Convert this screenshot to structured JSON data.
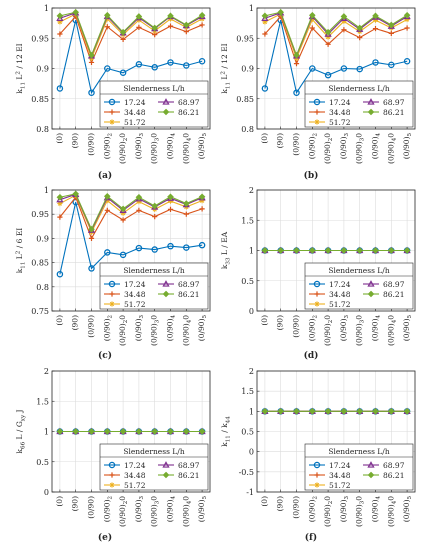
{
  "chart_data": [
    {
      "panel": "(a)",
      "type": "line",
      "ylabel": "k_11 L^2 / 12 EI",
      "ylim": [
        0.8,
        1.0
      ],
      "yticks": [
        "0.8",
        "0.85",
        "0.9",
        "0.95",
        "1"
      ],
      "categories": [
        "(0)",
        "(90)",
        "(0/90)",
        "(0/90)_2",
        "(0/90)_2 0",
        "(0/90)_3",
        "(0/90)_3 0",
        "(0/90)_4",
        "(0/90)_4 0",
        "(0/90)_5"
      ],
      "legend_title": "Slenderness L/h",
      "legend_position": "bottom-right",
      "grid": true,
      "series": [
        {
          "name": "17.24",
          "color": "#0072BD",
          "marker": "circle",
          "values": [
            0.867,
            0.98,
            0.86,
            0.9,
            0.893,
            0.907,
            0.902,
            0.91,
            0.905,
            0.912
          ]
        },
        {
          "name": "34.48",
          "color": "#D95319",
          "marker": "plus",
          "values": [
            0.957,
            0.986,
            0.91,
            0.969,
            0.948,
            0.968,
            0.956,
            0.97,
            0.961,
            0.972
          ]
        },
        {
          "name": "51.72",
          "color": "#EDB120",
          "marker": "star",
          "values": [
            0.977,
            0.99,
            0.917,
            0.982,
            0.956,
            0.98,
            0.962,
            0.982,
            0.968,
            0.982
          ]
        },
        {
          "name": "68.97",
          "color": "#7E2F8E",
          "marker": "triangle",
          "values": [
            0.983,
            0.992,
            0.921,
            0.986,
            0.959,
            0.984,
            0.966,
            0.986,
            0.971,
            0.986
          ]
        },
        {
          "name": "86.21",
          "color": "#77AC30",
          "marker": "diamond",
          "values": [
            0.987,
            0.993,
            0.922,
            0.988,
            0.96,
            0.986,
            0.967,
            0.987,
            0.972,
            0.988
          ]
        }
      ]
    },
    {
      "panel": "(b)",
      "type": "line",
      "ylabel": "k_11 L^2 / 12 EI",
      "ylim": [
        0.8,
        1.0
      ],
      "yticks": [
        "0.8",
        "0.85",
        "0.9",
        "0.95",
        "1"
      ],
      "categories": [
        "(0)",
        "(90)",
        "(0/90)",
        "(0/90)_2",
        "(0/90)_2 0",
        "(0/90)_3",
        "(0/90)_3 0",
        "(0/90)_4",
        "(0/90)_4 0",
        "(0/90)_5"
      ],
      "legend_title": "Slenderness L/h",
      "legend_position": "bottom-right",
      "grid": true,
      "series": [
        {
          "name": "17.24",
          "color": "#0072BD",
          "marker": "circle",
          "values": [
            0.867,
            0.98,
            0.86,
            0.9,
            0.889,
            0.9,
            0.899,
            0.91,
            0.906,
            0.912
          ]
        },
        {
          "name": "34.48",
          "color": "#D95319",
          "marker": "plus",
          "values": [
            0.957,
            0.986,
            0.908,
            0.967,
            0.94,
            0.964,
            0.951,
            0.966,
            0.958,
            0.967
          ]
        },
        {
          "name": "51.72",
          "color": "#EDB120",
          "marker": "star",
          "values": [
            0.977,
            0.99,
            0.917,
            0.981,
            0.952,
            0.978,
            0.961,
            0.98,
            0.967,
            0.981
          ]
        },
        {
          "name": "68.97",
          "color": "#7E2F8E",
          "marker": "triangle",
          "values": [
            0.983,
            0.992,
            0.921,
            0.986,
            0.957,
            0.983,
            0.965,
            0.985,
            0.97,
            0.986
          ]
        },
        {
          "name": "86.21",
          "color": "#77AC30",
          "marker": "diamond",
          "values": [
            0.987,
            0.993,
            0.922,
            0.988,
            0.96,
            0.986,
            0.967,
            0.987,
            0.972,
            0.988
          ]
        }
      ]
    },
    {
      "panel": "(c)",
      "type": "line",
      "ylabel": "k_11 L^2 / 6 EI",
      "ylim": [
        0.75,
        1.0
      ],
      "yticks": [
        "0.75",
        "0.8",
        "0.85",
        "0.9",
        "0.95",
        "1"
      ],
      "categories": [
        "(0)",
        "(90)",
        "(0/90)",
        "(0/90)_2",
        "(0/90)_2 0",
        "(0/90)_3",
        "(0/90)_3 0",
        "(0/90)_4",
        "(0/90)_4 0",
        "(0/90)_5"
      ],
      "legend_title": "Slenderness L/h",
      "legend_position": "bottom-right",
      "grid": true,
      "series": [
        {
          "name": "17.24",
          "color": "#0072BD",
          "marker": "circle",
          "values": [
            0.826,
            0.975,
            0.838,
            0.871,
            0.866,
            0.88,
            0.877,
            0.884,
            0.881,
            0.886
          ]
        },
        {
          "name": "34.48",
          "color": "#D95319",
          "marker": "plus",
          "values": [
            0.944,
            0.985,
            0.9,
            0.958,
            0.938,
            0.958,
            0.945,
            0.96,
            0.95,
            0.961
          ]
        },
        {
          "name": "51.72",
          "color": "#EDB120",
          "marker": "star",
          "values": [
            0.972,
            0.989,
            0.913,
            0.978,
            0.952,
            0.976,
            0.96,
            0.977,
            0.965,
            0.978
          ]
        },
        {
          "name": "68.97",
          "color": "#7E2F8E",
          "marker": "triangle",
          "values": [
            0.98,
            0.991,
            0.917,
            0.984,
            0.958,
            0.982,
            0.965,
            0.983,
            0.97,
            0.984
          ]
        },
        {
          "name": "86.21",
          "color": "#77AC30",
          "marker": "diamond",
          "values": [
            0.985,
            0.992,
            0.919,
            0.987,
            0.961,
            0.985,
            0.967,
            0.986,
            0.972,
            0.986
          ]
        }
      ]
    },
    {
      "panel": "(d)",
      "type": "line",
      "ylabel": "k_33 L / EA",
      "ylim": [
        0,
        2
      ],
      "yticks": [
        "0",
        "0.5",
        "1",
        "1.5",
        "2"
      ],
      "categories": [
        "(0)",
        "(90)",
        "(0/90)",
        "(0/90)_2",
        "(0/90)_2 0",
        "(0/90)_3",
        "(0/90)_3 0",
        "(0/90)_4",
        "(0/90)_4 0",
        "(0/90)_5"
      ],
      "legend_title": "Slenderness L/h",
      "legend_position": "bottom-right",
      "grid": true,
      "series": [
        {
          "name": "17.24",
          "color": "#0072BD",
          "marker": "circle",
          "values": [
            1,
            1,
            1,
            1,
            1,
            1,
            1,
            1,
            1,
            1
          ]
        },
        {
          "name": "34.48",
          "color": "#D95319",
          "marker": "plus",
          "values": [
            1,
            1,
            1,
            1,
            1,
            1,
            1,
            1,
            1,
            1
          ]
        },
        {
          "name": "51.72",
          "color": "#EDB120",
          "marker": "star",
          "values": [
            1,
            1,
            1,
            1,
            1,
            1,
            1,
            1,
            1,
            1
          ]
        },
        {
          "name": "68.97",
          "color": "#7E2F8E",
          "marker": "triangle",
          "values": [
            1,
            1,
            1,
            1,
            1,
            1,
            1,
            1,
            1,
            1
          ]
        },
        {
          "name": "86.21",
          "color": "#77AC30",
          "marker": "diamond",
          "values": [
            1,
            1,
            1,
            1,
            1,
            1,
            1,
            1,
            1,
            1
          ]
        }
      ]
    },
    {
      "panel": "(e)",
      "type": "line",
      "ylabel": "k_66 L / G_xy J",
      "ylim": [
        0,
        2
      ],
      "yticks": [
        "0",
        "0.5",
        "1",
        "1.5",
        "2"
      ],
      "categories": [
        "(0)",
        "(90)",
        "(0/90)",
        "(0/90)_2",
        "(0/90)_2 0",
        "(0/90)_3",
        "(0/90)_3 0",
        "(0/90)_4",
        "(0/90)_4 0",
        "(0/90)_5"
      ],
      "legend_title": "Slenderness L/h",
      "legend_position": "bottom-right",
      "grid": true,
      "series": [
        {
          "name": "17.24",
          "color": "#0072BD",
          "marker": "circle",
          "values": [
            1,
            1,
            1,
            1,
            1,
            1,
            1,
            1,
            1,
            1
          ]
        },
        {
          "name": "34.48",
          "color": "#D95319",
          "marker": "plus",
          "values": [
            1,
            1,
            1,
            1,
            1,
            1,
            1,
            1,
            1,
            1
          ]
        },
        {
          "name": "51.72",
          "color": "#EDB120",
          "marker": "star",
          "values": [
            1,
            1,
            1,
            1,
            1,
            1,
            1,
            1,
            1,
            1
          ]
        },
        {
          "name": "68.97",
          "color": "#7E2F8E",
          "marker": "triangle",
          "values": [
            1,
            1,
            1,
            1,
            1,
            1,
            1,
            1,
            1,
            1
          ]
        },
        {
          "name": "86.21",
          "color": "#77AC30",
          "marker": "diamond",
          "values": [
            1,
            1,
            1,
            1,
            1,
            1,
            1,
            1,
            1,
            1
          ]
        }
      ]
    },
    {
      "panel": "(f)",
      "type": "line",
      "ylabel": "k_11 / k_44",
      "ylim": [
        -1,
        2
      ],
      "yticks": [
        "-1",
        "-0.5",
        "0",
        "0.5",
        "1",
        "1.5",
        "2"
      ],
      "categories": [
        "(0)",
        "(90)",
        "(0/90)",
        "(0/90)_2",
        "(0/90)_2 0",
        "(0/90)_3",
        "(0/90)_3 0",
        "(0/90)_4",
        "(0/90)_4 0",
        "(0/90)_5"
      ],
      "legend_title": "Slenderness L/h",
      "legend_position": "bottom-right",
      "grid": true,
      "series": [
        {
          "name": "17.24",
          "color": "#0072BD",
          "marker": "circle",
          "values": [
            1,
            1,
            1,
            1,
            1,
            1,
            1,
            1,
            1,
            1
          ]
        },
        {
          "name": "34.48",
          "color": "#D95319",
          "marker": "plus",
          "values": [
            1,
            1,
            1,
            1,
            1,
            1,
            1,
            1,
            1,
            1
          ]
        },
        {
          "name": "51.72",
          "color": "#EDB120",
          "marker": "star",
          "values": [
            1,
            1,
            1,
            1,
            1,
            1,
            1,
            1,
            1,
            1
          ]
        },
        {
          "name": "68.97",
          "color": "#7E2F8E",
          "marker": "triangle",
          "values": [
            1,
            1,
            1,
            1,
            1,
            1,
            1,
            1,
            1,
            1
          ]
        },
        {
          "name": "86.21",
          "color": "#77AC30",
          "marker": "diamond",
          "values": [
            1,
            1,
            1,
            1,
            1,
            1,
            1,
            1,
            1,
            1
          ]
        }
      ]
    }
  ]
}
